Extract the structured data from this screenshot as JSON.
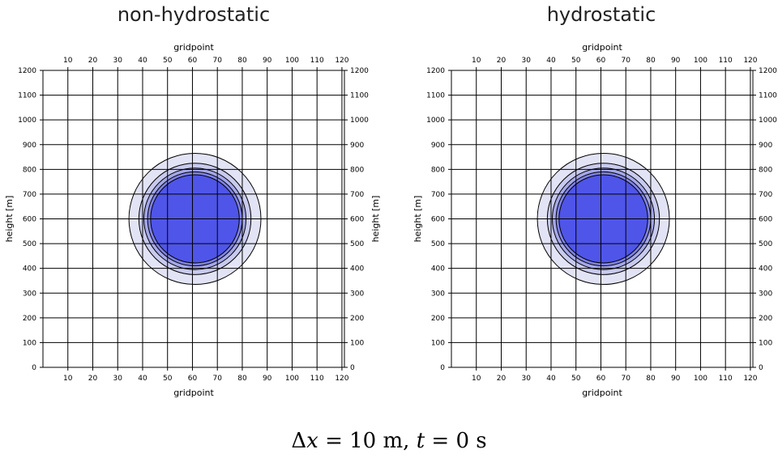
{
  "chart_data": [
    {
      "type": "contour",
      "title": "non-hydrostatic",
      "xlabel": "gridpoint",
      "ylabel": "height [m]",
      "xlim": [
        0,
        121
      ],
      "ylim": [
        0,
        1200
      ],
      "xticks": [
        10,
        20,
        30,
        40,
        50,
        60,
        70,
        80,
        90,
        100,
        110,
        120
      ],
      "yticks": [
        0,
        100,
        200,
        300,
        400,
        500,
        600,
        700,
        800,
        900,
        1000,
        1100,
        1200
      ],
      "grid": true,
      "center": [
        61,
        600
      ],
      "contours": [
        {
          "radius_m": 265,
          "fill": "#e2e3f4"
        },
        {
          "radius_m": 225,
          "fill": "#c8caee"
        },
        {
          "radius_m": 205,
          "fill": "#a4a7e8"
        },
        {
          "radius_m": 190,
          "fill": "#7e82e6"
        },
        {
          "radius_m": 178,
          "fill": "#4f55e8"
        }
      ]
    },
    {
      "type": "contour",
      "title": "hydrostatic",
      "xlabel": "gridpoint",
      "ylabel": "height [m]",
      "xlim": [
        0,
        121
      ],
      "ylim": [
        0,
        1200
      ],
      "xticks": [
        10,
        20,
        30,
        40,
        50,
        60,
        70,
        80,
        90,
        100,
        110,
        120
      ],
      "yticks": [
        0,
        100,
        200,
        300,
        400,
        500,
        600,
        700,
        800,
        900,
        1000,
        1100,
        1200
      ],
      "grid": true,
      "center": [
        61,
        600
      ],
      "contours": [
        {
          "radius_m": 265,
          "fill": "#e2e3f4"
        },
        {
          "radius_m": 225,
          "fill": "#c8caee"
        },
        {
          "radius_m": 205,
          "fill": "#a4a7e8"
        },
        {
          "radius_m": 190,
          "fill": "#7e82e6"
        },
        {
          "radius_m": 178,
          "fill": "#4f55e8"
        }
      ]
    }
  ],
  "caption": {
    "delta": "Δ",
    "x_var": "x",
    "x_eq": " = 10 m,  ",
    "t_var": "t",
    "t_eq": " = 0 s"
  }
}
